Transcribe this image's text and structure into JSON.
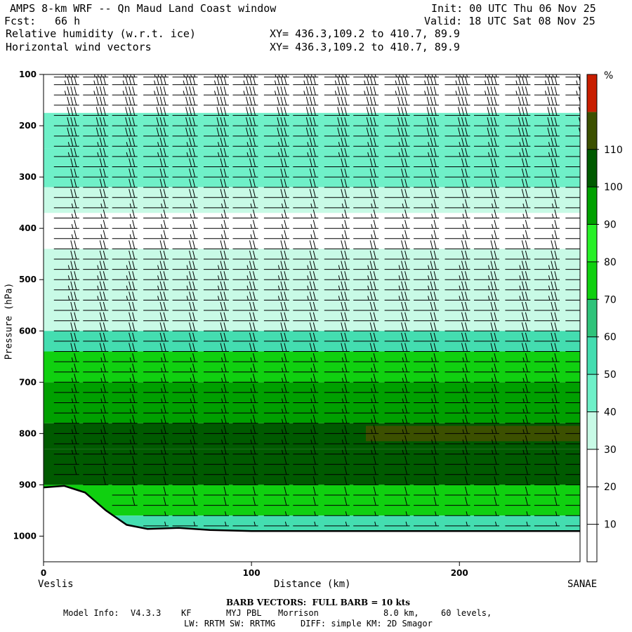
{
  "header": {
    "title": "AMPS 8-km WRF -- Qn Maud Land Coast window",
    "init": "Init: 00 UTC Thu 06 Nov 25",
    "fcst_label": "Fcst:",
    "fcst_value": "66 h",
    "valid": "Valid: 18 UTC Sat 08 Nov 25",
    "field1": "Relative humidity (w.r.t. ice)",
    "field2": "Horizontal wind vectors",
    "xy1": "XY= 436.3,109.2 to 410.7, 89.9",
    "xy2": "XY= 436.3,109.2 to 410.7, 89.9"
  },
  "chart_data": {
    "type": "heatmap",
    "xlabel": "Distance (km)",
    "ylabel": "Pressure (hPa)",
    "x_start_label": "Veslis",
    "x_end_label": "SANAE",
    "xlim": [
      0,
      258
    ],
    "ylim": [
      1050,
      100
    ],
    "x_ticks": [
      0,
      100,
      200
    ],
    "y_ticks": [
      100,
      200,
      300,
      400,
      500,
      600,
      700,
      800,
      900,
      1000
    ],
    "colorbar": {
      "unit": "%",
      "levels": [
        10,
        20,
        30,
        40,
        50,
        60,
        70,
        80,
        90,
        100,
        110
      ],
      "colors": [
        "#ffffff",
        "#ffffff",
        "#ffffff",
        "#c8fae6",
        "#6ff0c8",
        "#44ddb0",
        "#2fc37a",
        "#10d010",
        "#28f028",
        "#00a000",
        "#005a00",
        "#3c5000",
        "#c81e00"
      ]
    },
    "rh_layers": [
      {
        "p_top": 175,
        "p_bot": 245,
        "value": 45
      },
      {
        "p_top": 245,
        "p_bot": 320,
        "value": 40
      },
      {
        "p_top": 320,
        "p_bot": 370,
        "value": 35
      },
      {
        "p_top": 440,
        "p_bot": 540,
        "value": 35
      },
      {
        "p_top": 540,
        "p_bot": 600,
        "value": 38
      },
      {
        "p_top": 600,
        "p_bot": 640,
        "value": 50
      },
      {
        "p_top": 640,
        "p_bot": 700,
        "value": 70
      },
      {
        "p_top": 700,
        "p_bot": 780,
        "value": 95
      },
      {
        "p_top": 780,
        "p_bot": 830,
        "value": 102
      },
      {
        "p_top": 830,
        "p_bot": 900,
        "value": 100
      },
      {
        "p_top": 900,
        "p_bot": 960,
        "value": 75
      },
      {
        "p_top": 960,
        "p_bot": 990,
        "value": 55
      }
    ],
    "rh_maximum": {
      "x_range": [
        155,
        258
      ],
      "p_range": [
        785,
        815
      ],
      "value": 112
    },
    "terrain_surface_hpa": [
      [
        0,
        905
      ],
      [
        10,
        902
      ],
      [
        20,
        915
      ],
      [
        30,
        950
      ],
      [
        40,
        978
      ],
      [
        50,
        986
      ],
      [
        65,
        984
      ],
      [
        80,
        988
      ],
      [
        100,
        990
      ],
      [
        150,
        990
      ],
      [
        200,
        990
      ],
      [
        258,
        990
      ]
    ],
    "wind_barbs": {
      "full_barb_kts": 10,
      "rows_hpa": [
        105,
        120,
        140,
        160,
        180,
        200,
        220,
        240,
        260,
        280,
        300,
        320,
        340,
        360,
        380,
        400,
        420,
        440,
        460,
        480,
        500,
        520,
        540,
        560,
        580,
        600,
        620,
        640,
        660,
        680,
        700,
        720,
        740,
        760,
        780,
        800,
        820,
        840,
        860,
        880,
        900,
        920,
        940,
        960,
        980
      ],
      "columns_km": [
        5,
        19,
        33,
        48,
        62,
        77,
        91,
        106,
        120,
        135,
        149,
        164,
        178,
        193,
        207,
        222,
        236,
        251
      ],
      "speed_kts_by_level": [
        [
          100,
          35
        ],
        [
          200,
          30
        ],
        [
          300,
          20
        ],
        [
          400,
          15
        ],
        [
          500,
          25
        ],
        [
          600,
          20
        ],
        [
          700,
          15
        ],
        [
          800,
          15
        ],
        [
          900,
          10
        ],
        [
          1000,
          5
        ]
      ]
    }
  },
  "footer": {
    "barb_note": "BARB VECTORS:  FULL BARB = 10 kts",
    "model_info_label": "Model Info:",
    "model_version": "V4.3.3",
    "cumulus": "KF",
    "pbl": "MYJ PBL",
    "microphysics": "Morrison",
    "resolution": "8.0 km,",
    "levels": "60 levels,",
    "radiation": "LW: RRTM SW: RRTMG",
    "diffusion": "DIFF: simple KM: 2D Smagor"
  }
}
